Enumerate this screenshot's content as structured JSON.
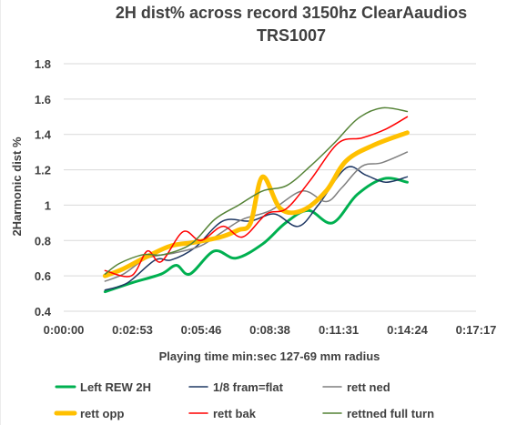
{
  "chart_data": {
    "type": "line",
    "title_lines": [
      "2H dist%  across record 3150hz ClearAaudios",
      "TRS1007"
    ],
    "xlabel": "Playing time min:sec 127-69 mm radius",
    "ylabel": "2Harmonic dist %",
    "x_ticks": [
      "0:00:00",
      "0:02:53",
      "0:05:46",
      "0:08:38",
      "0:11:31",
      "0:14:24",
      "0:17:17"
    ],
    "x_range_seconds": [
      0,
      1037
    ],
    "y_ticks": [
      "0.4",
      "0.6",
      "0.8",
      "1",
      "1.2",
      "1.4",
      "1.6",
      "1.8"
    ],
    "ylim": [
      0.4,
      1.8
    ],
    "grid": "horizontal",
    "legend_position": "bottom",
    "series": [
      {
        "name": "Left REW 2H",
        "color": "#00b050",
        "width": 3,
        "x": [
          104,
          170,
          245,
          283,
          317,
          378,
          433,
          500,
          558,
          615,
          676,
          738,
          805,
          864
        ],
        "y": [
          0.51,
          0.56,
          0.61,
          0.66,
          0.61,
          0.74,
          0.7,
          0.78,
          0.9,
          0.97,
          0.9,
          1.06,
          1.15,
          1.13
        ]
      },
      {
        "name": "1/8 fram=flat",
        "color": "#1f3864",
        "width": 1.5,
        "x": [
          104,
          160,
          230,
          270,
          330,
          400,
          470,
          530,
          590,
          640,
          710,
          760,
          810,
          864
        ],
        "y": [
          0.52,
          0.56,
          0.69,
          0.69,
          0.76,
          0.91,
          0.91,
          0.95,
          0.88,
          1.0,
          1.21,
          1.17,
          1.13,
          1.16
        ]
      },
      {
        "name": "rett ned",
        "color": "#7f7f7f",
        "width": 1.5,
        "x": [
          104,
          150,
          210,
          280,
          345,
          400,
          450,
          520,
          600,
          660,
          700,
          750,
          800,
          864
        ],
        "y": [
          0.57,
          0.61,
          0.7,
          0.73,
          0.77,
          0.85,
          0.92,
          0.97,
          1.08,
          1.02,
          1.1,
          1.22,
          1.24,
          1.3
        ]
      },
      {
        "name": "rett opp",
        "color": "#ffc000",
        "width": 5,
        "x": [
          104,
          150,
          210,
          270,
          330,
          395,
          440,
          470,
          500,
          545,
          600,
          660,
          710,
          780,
          864
        ],
        "y": [
          0.6,
          0.64,
          0.71,
          0.77,
          0.79,
          0.82,
          0.86,
          0.9,
          1.16,
          0.98,
          0.97,
          1.08,
          1.25,
          1.34,
          1.41
        ]
      },
      {
        "name": "rett bak",
        "color": "#ff0000",
        "width": 1.5,
        "x": [
          104,
          170,
          210,
          245,
          300,
          345,
          400,
          450,
          510,
          560,
          620,
          690,
          750,
          810,
          864
        ],
        "y": [
          0.63,
          0.6,
          0.74,
          0.68,
          0.85,
          0.8,
          0.88,
          0.82,
          0.95,
          0.98,
          1.14,
          1.35,
          1.38,
          1.43,
          1.5
        ]
      },
      {
        "name": "rettned full turn",
        "color": "#548235",
        "width": 1.5,
        "x": [
          104,
          140,
          200,
          250,
          320,
          380,
          440,
          500,
          560,
          620,
          680,
          740,
          800,
          864
        ],
        "y": [
          0.61,
          0.67,
          0.72,
          0.72,
          0.78,
          0.92,
          1.0,
          1.08,
          1.11,
          1.22,
          1.35,
          1.49,
          1.55,
          1.53
        ]
      }
    ]
  }
}
